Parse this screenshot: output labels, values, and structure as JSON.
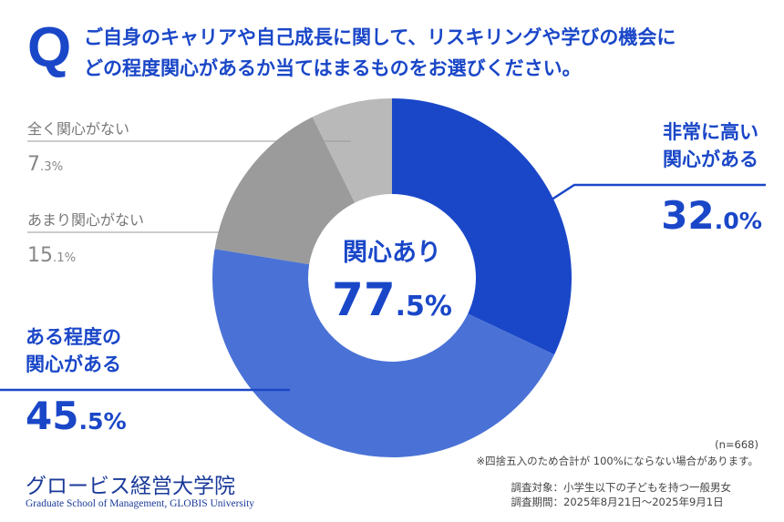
{
  "header": {
    "q_mark": "Q",
    "question_line1": "ご自身のキャリアや自己成長に関して、リスキリングや学びの機会に",
    "question_line2": "どの程度関心があるか当てはまるものをお選びください。"
  },
  "chart_data": {
    "type": "pie",
    "title": "ご自身のキャリアや自己成長に関して、リスキリングや学びの機会にどの程度関心があるか当てはまるものをお選びください。",
    "slices": [
      {
        "label": "非常に高い関心がある",
        "value": 32.0,
        "color": "#1a47c8",
        "int": "32",
        "dec": ".0%"
      },
      {
        "label": "ある程度の関心がある",
        "value": 45.5,
        "color": "#4a72d6",
        "int": "45",
        "dec": ".5%"
      },
      {
        "label": "あまり関心がない",
        "value": 15.1,
        "color": "#9b9b9b",
        "int": "15",
        "dec": ".1%"
      },
      {
        "label": "全く関心がない",
        "value": 7.3,
        "color": "#b9b9b9",
        "int": "7",
        "dec": ".3%"
      }
    ],
    "center": {
      "label": "関心あり",
      "int": "77",
      "dec": ".5%",
      "value": 77.5
    }
  },
  "labels": {
    "high_1": "非常に高い",
    "high_2": "関心がある",
    "some_1": "ある程度の",
    "some_2": "関心がある"
  },
  "notes": {
    "n": "(n=668)",
    "rounding": "※四捨五入のため合計が 100%にならない場合があります。",
    "target": "調査対象：小学生以下の子どもを持つ一般男女",
    "period": "調査期間：2025年8月21日〜2025年9月1日"
  },
  "logo": {
    "jp": "グロービス経営大学院",
    "en": "Graduate School of Management, GLOBIS University"
  }
}
